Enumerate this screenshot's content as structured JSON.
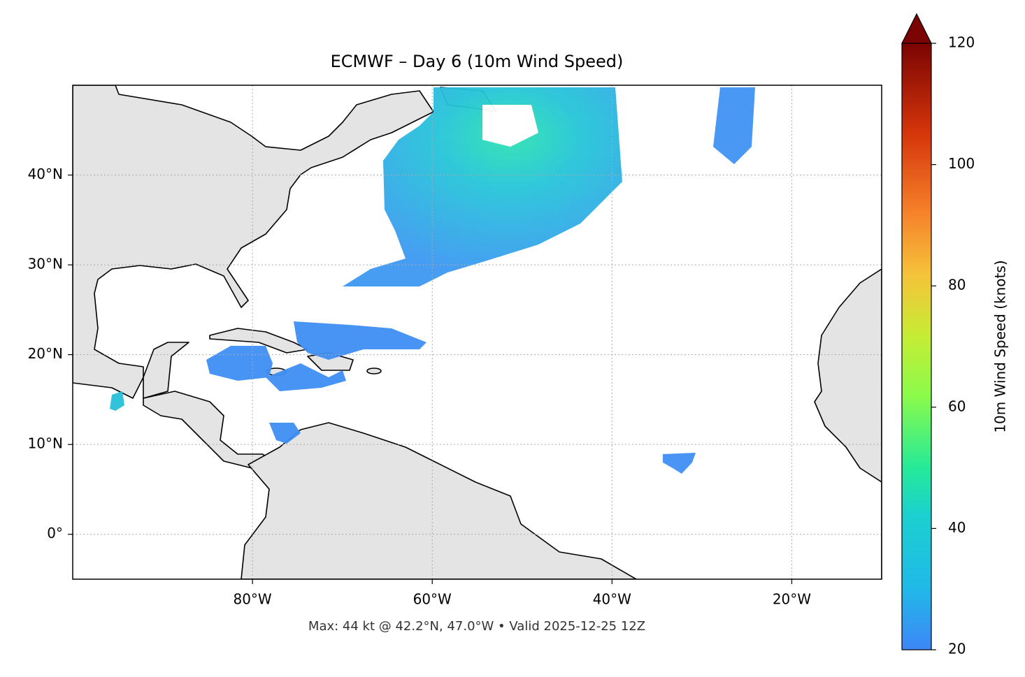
{
  "chart_data": {
    "type": "map",
    "title": "ECMWF – Day 6 (10m Wind Speed)",
    "footnote": "Max: 44 kt @ 42.2°N, 47.0°W • Valid 2025-12-25 12Z",
    "xlim": [
      -100,
      -10
    ],
    "ylim": [
      -5,
      50
    ],
    "xticks": [
      {
        "value": -80,
        "label": "80°W"
      },
      {
        "value": -60,
        "label": "60°W"
      },
      {
        "value": -40,
        "label": "40°W"
      },
      {
        "value": -20,
        "label": "20°W"
      }
    ],
    "yticks": [
      {
        "value": 0,
        "label": "0°"
      },
      {
        "value": 10,
        "label": "10°N"
      },
      {
        "value": 20,
        "label": "20°N"
      },
      {
        "value": 30,
        "label": "30°N"
      },
      {
        "value": 40,
        "label": "40°N"
      }
    ],
    "grid": true,
    "colorbar": {
      "label": "10m Wind Speed (knots)",
      "lim": [
        20,
        120
      ],
      "ticks": [
        20,
        40,
        60,
        80,
        100,
        120
      ],
      "extend": "max"
    }
  }
}
